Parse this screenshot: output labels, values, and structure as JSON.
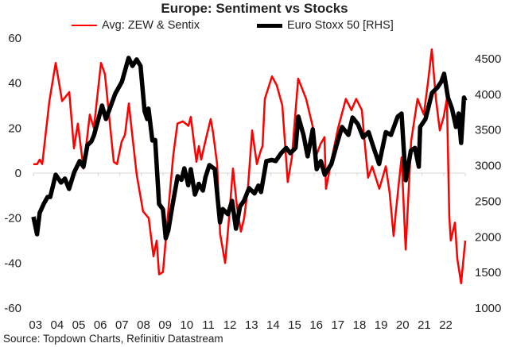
{
  "chart_data": {
    "type": "line",
    "title": "Europe: Sentiment vs Stocks",
    "source": "Source: Topdown Charts, Refinitiv Datastream",
    "x_tick_labels": [
      "03",
      "04",
      "05",
      "06",
      "07",
      "08",
      "09",
      "10",
      "11",
      "12",
      "13",
      "14",
      "15",
      "16",
      "17",
      "18",
      "19",
      "20",
      "21",
      "22"
    ],
    "xlim": [
      2003,
      2023
    ],
    "y_left": {
      "ylim": [
        -60,
        60
      ],
      "ticks": [
        -60,
        -40,
        -20,
        0,
        20,
        40,
        60
      ]
    },
    "y_right": {
      "ylim": [
        1000,
        4500
      ],
      "ticks": [
        1000,
        1500,
        2000,
        2500,
        3000,
        3500,
        4000,
        4500
      ]
    },
    "grid": false,
    "legend_position": "top",
    "series": [
      {
        "name": "Avg: ZEW & Sentix",
        "axis": "left",
        "color": "#ff0000",
        "x": [
          2003.0,
          2003.17,
          2003.29,
          2003.41,
          2003.74,
          2004.03,
          2004.33,
          2004.66,
          2004.88,
          2005.06,
          2005.32,
          2005.61,
          2005.8,
          2006.13,
          2006.31,
          2006.72,
          2006.87,
          2007.09,
          2007.24,
          2007.42,
          2007.6,
          2007.79,
          2008.08,
          2008.34,
          2008.56,
          2008.71,
          2008.82,
          2009.0,
          2009.3,
          2009.48,
          2009.67,
          2009.92,
          2010.18,
          2010.29,
          2010.55,
          2010.66,
          2010.77,
          2010.96,
          2011.21,
          2011.32,
          2011.51,
          2011.65,
          2011.88,
          2012.06,
          2012.24,
          2012.43,
          2012.61,
          2012.76,
          2012.94,
          2013.13,
          2013.35,
          2013.53,
          2013.61,
          2013.72,
          2014.05,
          2014.27,
          2014.53,
          2014.78,
          2014.97,
          2015.26,
          2015.63,
          2015.93,
          2016.11,
          2016.3,
          2016.48,
          2016.55,
          2016.81,
          2017.11,
          2017.47,
          2017.73,
          2017.95,
          2018.21,
          2018.32,
          2018.5,
          2018.69,
          2019.02,
          2019.32,
          2019.5,
          2019.68,
          2019.79,
          2020.05,
          2020.24,
          2020.49,
          2020.79,
          2021.08,
          2021.27,
          2021.45,
          2021.64,
          2021.82,
          2022.0,
          2022.15,
          2022.26,
          2022.33,
          2022.52,
          2022.63,
          2022.81,
          2023.0
        ],
        "values": [
          4,
          4,
          6,
          4,
          32,
          49,
          32,
          36,
          11,
          22,
          2,
          26,
          20,
          49,
          44,
          5,
          4,
          14,
          17,
          31,
          15,
          -1,
          -17,
          -20,
          -37,
          -30,
          -45,
          -44,
          -11,
          8,
          22,
          23,
          21,
          25,
          5,
          12,
          6,
          14,
          24,
          18,
          4,
          -27,
          -40,
          -20,
          2,
          -15,
          -26,
          -20,
          -6,
          19,
          4,
          10,
          12,
          33,
          43,
          39,
          30,
          -4,
          7,
          42,
          33,
          21,
          8,
          13,
          16,
          -7,
          6,
          20,
          33,
          28,
          33,
          28,
          16,
          -2,
          3,
          -7,
          3,
          -9,
          -28,
          -17,
          7,
          -34,
          14,
          33,
          26,
          40,
          55,
          33,
          19,
          25,
          33,
          -19,
          -30,
          -22,
          -38,
          -49,
          -30
        ]
      },
      {
        "name": "Euro Stoxx 50 [RHS]",
        "axis": "right",
        "color": "#000000",
        "x": [
          2003.0,
          2003.17,
          2003.29,
          2003.48,
          2003.66,
          2003.78,
          2004.03,
          2004.28,
          2004.46,
          2004.65,
          2004.89,
          2005.14,
          2005.32,
          2005.5,
          2005.69,
          2005.81,
          2006.18,
          2006.36,
          2006.79,
          2007.1,
          2007.41,
          2007.59,
          2007.78,
          2007.96,
          2008.15,
          2008.27,
          2008.33,
          2008.51,
          2008.64,
          2008.82,
          2009.0,
          2009.13,
          2009.25,
          2009.43,
          2009.68,
          2009.86,
          2009.99,
          2010.17,
          2010.29,
          2010.48,
          2010.66,
          2010.85,
          2010.97,
          2011.15,
          2011.4,
          2011.64,
          2011.77,
          2012.01,
          2012.2,
          2012.38,
          2012.57,
          2012.75,
          2012.99,
          2013.24,
          2013.42,
          2013.54,
          2013.79,
          2014.04,
          2014.22,
          2014.47,
          2014.71,
          2014.9,
          2015.14,
          2015.27,
          2015.51,
          2015.7,
          2015.94,
          2016.12,
          2016.31,
          2016.49,
          2016.8,
          2017.04,
          2017.29,
          2017.59,
          2017.78,
          2018.03,
          2018.27,
          2018.52,
          2018.76,
          2019.01,
          2019.32,
          2019.56,
          2019.87,
          2020.05,
          2020.24,
          2020.48,
          2020.67,
          2020.85,
          2020.91,
          2021.16,
          2021.46,
          2021.71,
          2021.89,
          2022.02,
          2022.2,
          2022.39,
          2022.57,
          2022.69,
          2022.81,
          2022.94,
          2023.0
        ],
        "values": [
          2282,
          2037,
          2338,
          2464,
          2561,
          2561,
          2873,
          2762,
          2818,
          2673,
          2907,
          3063,
          2985,
          3286,
          3341,
          3431,
          3843,
          3654,
          4010,
          4178,
          4512,
          4400,
          4490,
          4400,
          3765,
          3654,
          3800,
          3353,
          3360,
          2461,
          2387,
          1981,
          2093,
          2427,
          2851,
          2800,
          2962,
          2725,
          2950,
          2594,
          2744,
          2650,
          2840,
          3007,
          2950,
          2204,
          2390,
          2317,
          2505,
          2115,
          2427,
          2505,
          2684,
          2610,
          2720,
          2630,
          3063,
          3080,
          3063,
          3174,
          3248,
          3174,
          3248,
          3687,
          3431,
          3130,
          3509,
          2951,
          3063,
          2873,
          3023,
          3286,
          3542,
          3431,
          3675,
          3580,
          3397,
          3470,
          3248,
          3023,
          3470,
          3431,
          3687,
          3731,
          2795,
          3210,
          3248,
          2985,
          3542,
          3654,
          4022,
          4097,
          4178,
          4289,
          3955,
          3799,
          3542,
          3731,
          3319,
          3955,
          3910
        ]
      }
    ]
  }
}
